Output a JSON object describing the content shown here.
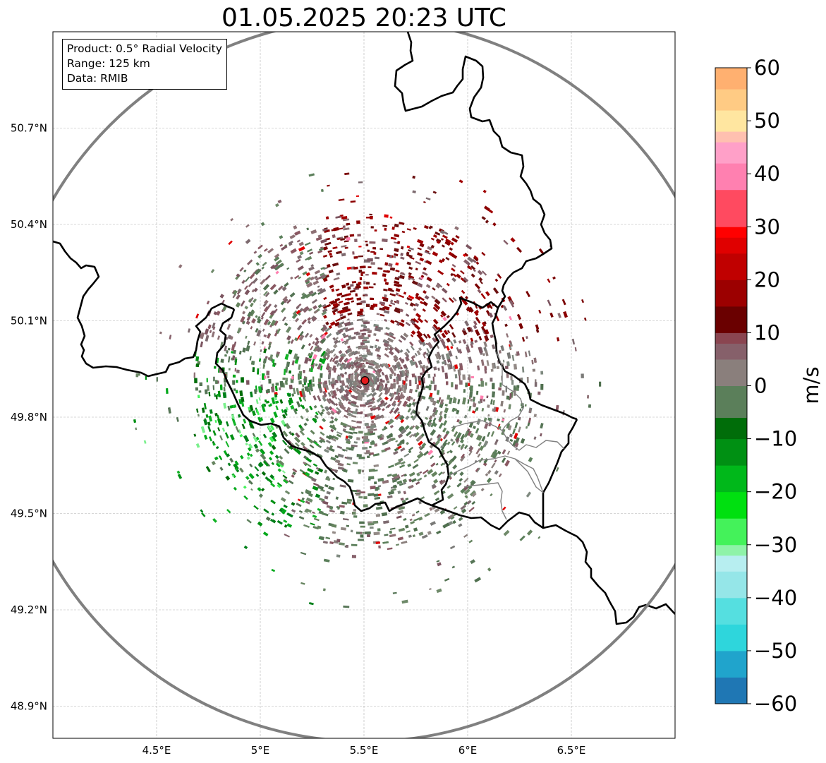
{
  "title": "01.05.2025 20:23 UTC",
  "infobox": {
    "product": "Product: 0.5° Radial Velocity",
    "range": "Range: 125 km",
    "source": "Data: RMIB"
  },
  "map": {
    "lon_range": [
      4.0,
      7.0
    ],
    "lat_range": [
      48.8,
      51.0
    ],
    "lon_ticks": [
      {
        "value": 4.5,
        "label": "4.5°E"
      },
      {
        "value": 5.0,
        "label": "5°E"
      },
      {
        "value": 5.5,
        "label": "5.5°E"
      },
      {
        "value": 6.0,
        "label": "6°E"
      },
      {
        "value": 6.5,
        "label": "6.5°E"
      }
    ],
    "lat_ticks": [
      {
        "value": 50.7,
        "label": "50.7°N"
      },
      {
        "value": 50.4,
        "label": "50.4°N"
      },
      {
        "value": 50.1,
        "label": "50.1°N"
      },
      {
        "value": 49.8,
        "label": "49.8°N"
      },
      {
        "value": 49.5,
        "label": "49.5°N"
      },
      {
        "value": 49.2,
        "label": "49.2°N"
      },
      {
        "value": 48.9,
        "label": "48.9°N"
      }
    ],
    "radar_site": {
      "lon": 5.505,
      "lat": 49.914
    },
    "range_ring_km": 125,
    "grid": true
  },
  "colorbar": {
    "unit": "m/s",
    "min": -60,
    "max": 60,
    "ticks": [
      {
        "value": 60,
        "label": "60"
      },
      {
        "value": 50,
        "label": "50"
      },
      {
        "value": 40,
        "label": "40"
      },
      {
        "value": 30,
        "label": "30"
      },
      {
        "value": 20,
        "label": "20"
      },
      {
        "value": 10,
        "label": "10"
      },
      {
        "value": 0,
        "label": "0"
      },
      {
        "value": -10,
        "label": "−10"
      },
      {
        "value": -20,
        "label": "−20"
      },
      {
        "value": -30,
        "label": "−30"
      },
      {
        "value": -40,
        "label": "−40"
      },
      {
        "value": -50,
        "label": "−50"
      },
      {
        "value": -60,
        "label": "−60"
      }
    ],
    "stops": [
      {
        "v": -60,
        "c": "#1f77b4"
      },
      {
        "v": -55,
        "c": "#20a4cc"
      },
      {
        "v": -50,
        "c": "#2ed6dc"
      },
      {
        "v": -45,
        "c": "#55dfe0"
      },
      {
        "v": -40,
        "c": "#95e6e8"
      },
      {
        "v": -35,
        "c": "#b7eef0"
      },
      {
        "v": -32,
        "c": "#8ff3a8"
      },
      {
        "v": -30,
        "c": "#44f25a"
      },
      {
        "v": -25,
        "c": "#00e010"
      },
      {
        "v": -20,
        "c": "#00b81a"
      },
      {
        "v": -15,
        "c": "#009013"
      },
      {
        "v": -10,
        "c": "#006d09"
      },
      {
        "v": -6,
        "c": "#5b7f5a"
      },
      {
        "v": 0,
        "c": "#8a7f7c"
      },
      {
        "v": 5,
        "c": "#86606a"
      },
      {
        "v": 8,
        "c": "#8a4550"
      },
      {
        "v": 10,
        "c": "#6a0000"
      },
      {
        "v": 15,
        "c": "#9c0000"
      },
      {
        "v": 20,
        "c": "#c00000"
      },
      {
        "v": 25,
        "c": "#e00000"
      },
      {
        "v": 28,
        "c": "#ff0000"
      },
      {
        "v": 30,
        "c": "#ff4a60"
      },
      {
        "v": 37,
        "c": "#ff80b0"
      },
      {
        "v": 42,
        "c": "#ffa0c8"
      },
      {
        "v": 46,
        "c": "#ffc0b0"
      },
      {
        "v": 48,
        "c": "#ffe6a0"
      },
      {
        "v": 52,
        "c": "#ffcb84"
      },
      {
        "v": 56,
        "c": "#ffb070"
      },
      {
        "v": 60,
        "c": "#ff9850"
      }
    ]
  },
  "colors": {
    "range_ring": "#808080",
    "border_major": "#000000",
    "border_minor": "#808080",
    "radar_marker": "#e41a1c"
  }
}
